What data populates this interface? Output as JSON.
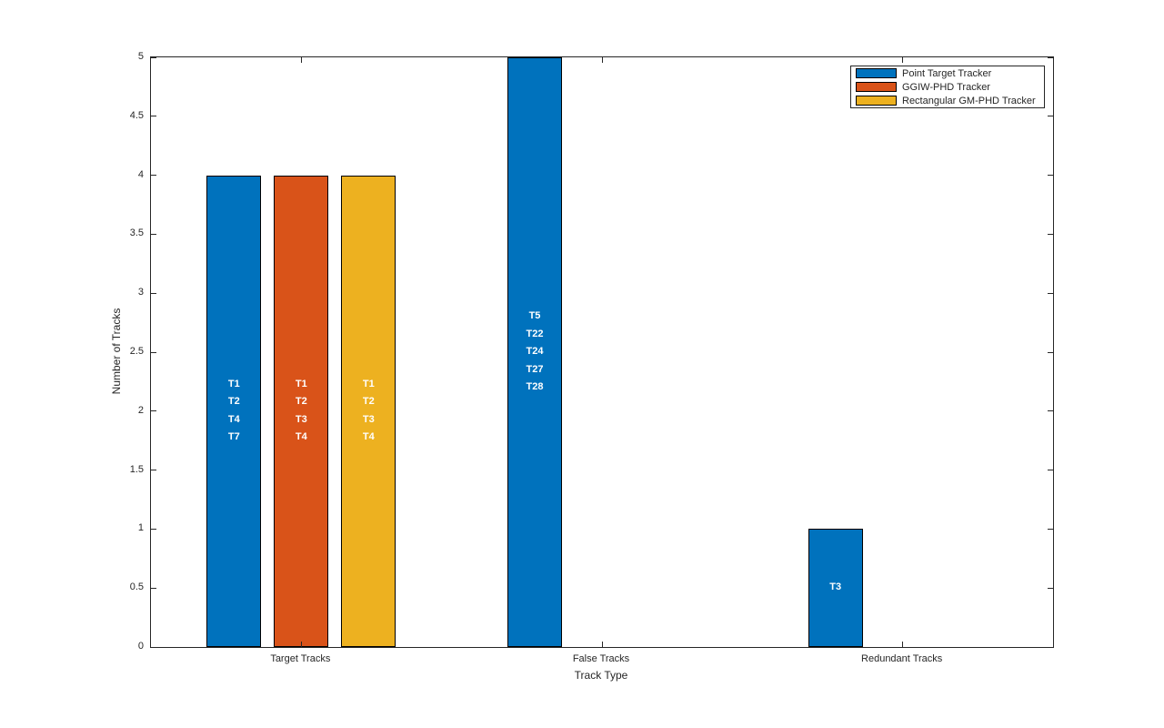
{
  "figure": {
    "background": "#ffffff",
    "axis_color": "#262626",
    "bar_edge_color": "#000000",
    "bar_label_color": "#ffffff"
  },
  "chart_data": {
    "type": "bar",
    "title": "",
    "xlabel": "Track Type",
    "ylabel": "Number of Tracks",
    "categories": [
      "Target Tracks",
      "False Tracks",
      "Redundant Tracks"
    ],
    "series": [
      {
        "name": "Point Target Tracker",
        "color": "#0072BD",
        "values": [
          4,
          5,
          1
        ],
        "bar_labels": [
          [
            "T1",
            "T2",
            "T4",
            "T7"
          ],
          [
            "T5",
            "T22",
            "T24",
            "T27",
            "T28"
          ],
          [
            "T3"
          ]
        ]
      },
      {
        "name": "GGIW-PHD Tracker",
        "color": "#D95319",
        "values": [
          4,
          0,
          0
        ],
        "bar_labels": [
          [
            "T1",
            "T2",
            "T3",
            "T4"
          ],
          [],
          []
        ]
      },
      {
        "name": "Rectangular GM-PHD Tracker",
        "color": "#EDB120",
        "values": [
          4,
          0,
          0
        ],
        "bar_labels": [
          [
            "T1",
            "T2",
            "T3",
            "T4"
          ],
          [],
          []
        ]
      }
    ],
    "ylim": [
      0,
      5
    ],
    "ytick_step": 0.5,
    "ytick_labels": [
      "0",
      "0.5",
      "1",
      "1.5",
      "2",
      "2.5",
      "3",
      "3.5",
      "4",
      "4.5",
      "5"
    ],
    "grid": false,
    "legend_position": "top-right"
  }
}
